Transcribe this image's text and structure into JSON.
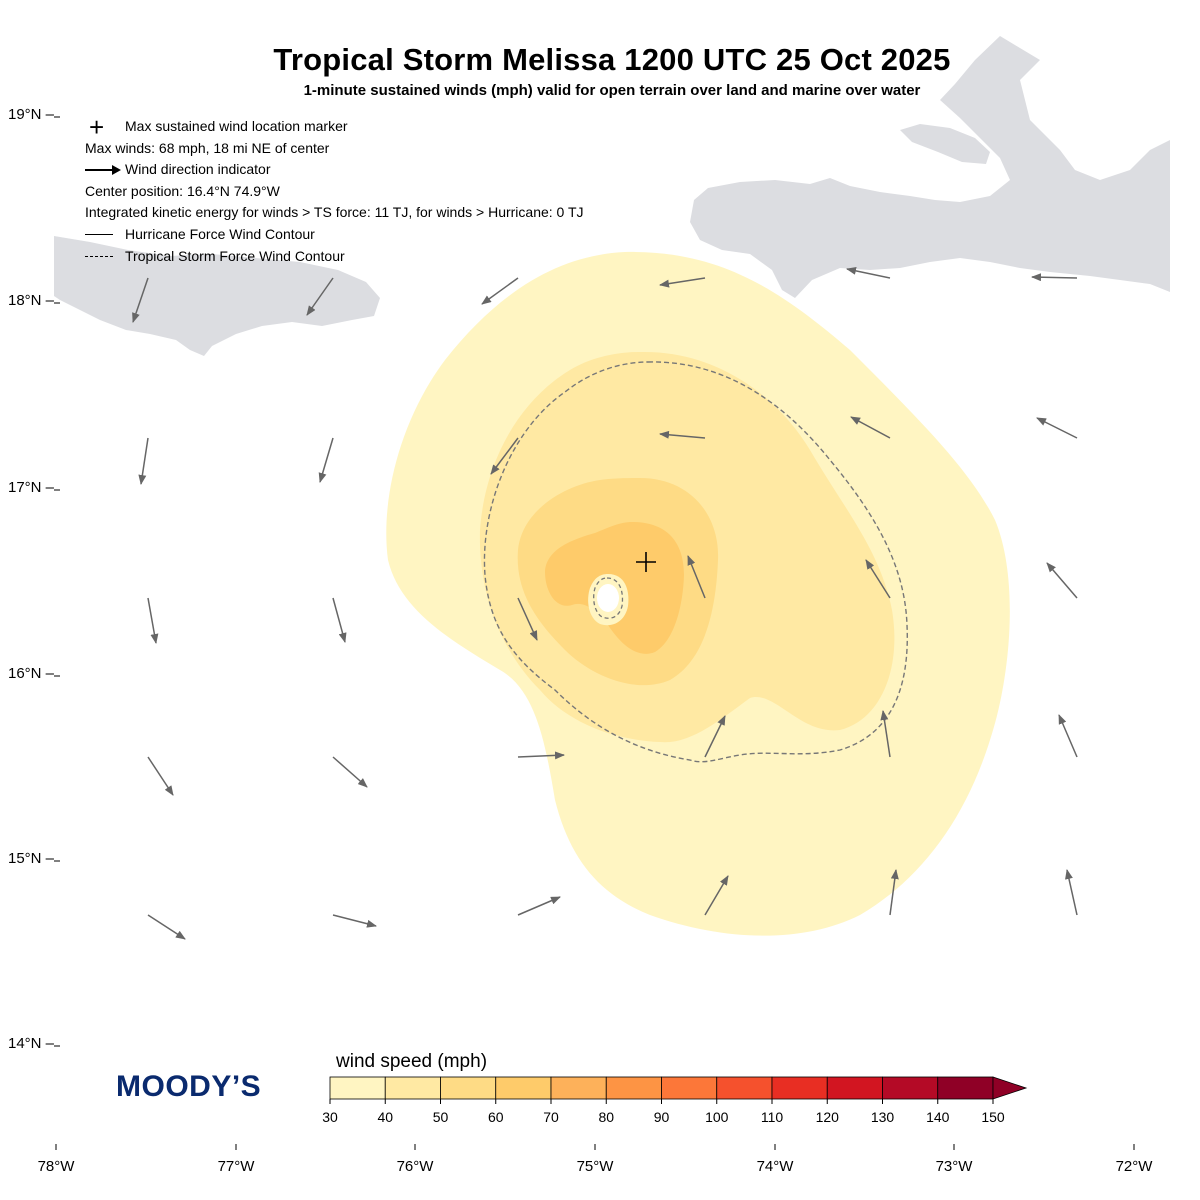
{
  "title": "Tropical Storm Melissa 1200 UTC 25 Oct 2025",
  "subtitle": "1-minute sustained winds (mph) valid for open terrain over land and marine over water",
  "legend": {
    "max_marker": "Max sustained wind location marker",
    "max_winds": "Max winds: 68 mph, 18 mi NE of center",
    "wind_direction": "Wind direction indicator",
    "center_position": "Center position: 16.4°N 74.9°W",
    "ike": "Integrated kinetic energy for winds > TS force: 11 TJ, for winds > Hurricane: 0 TJ",
    "hurricane_contour": "Hurricane Force Wind Contour",
    "ts_contour": "Tropical Storm Force Wind Contour"
  },
  "axes": {
    "lat_labels": [
      "19°N",
      "18°N",
      "17°N",
      "16°N",
      "15°N",
      "14°N"
    ],
    "lon_labels": [
      "78°W",
      "77°W",
      "76°W",
      "75°W",
      "74°W",
      "73°W",
      "72°W"
    ]
  },
  "colorbar": {
    "label": "wind speed (mph)",
    "ticks": [
      "30",
      "40",
      "50",
      "60",
      "70",
      "80",
      "90",
      "100",
      "110",
      "120",
      "130",
      "140",
      "150"
    ],
    "colors": [
      "#fff5c2",
      "#ffe9a3",
      "#fedb85",
      "#fecb6a",
      "#fdb15a",
      "#fd9444",
      "#fc7739",
      "#f5512d",
      "#e82e23",
      "#d21521",
      "#b40a26",
      "#8f0026"
    ]
  },
  "storm": {
    "center_lat": 16.4,
    "center_lon": -74.9,
    "max_wind_mph": 68
  },
  "colors": {
    "land": "#dcdde1",
    "arrow": "#666666",
    "contour": "#777777",
    "logo": "#0a2a6e"
  },
  "logo_text": "MOODY’S"
}
